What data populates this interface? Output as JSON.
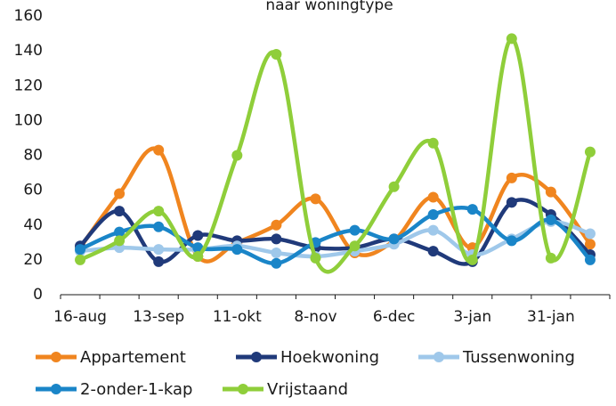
{
  "chart_data": {
    "type": "line",
    "title": "naar woningtype",
    "categories": [
      "16-aug",
      null,
      "13-sep",
      null,
      "11-okt",
      null,
      "8-nov",
      null,
      "6-dec",
      null,
      "3-jan",
      null,
      "31-jan",
      null
    ],
    "series": [
      {
        "name": "Appartement",
        "color": "#f0851f",
        "values": [
          27,
          58,
          83,
          22,
          30,
          40,
          55,
          24,
          31,
          56,
          27,
          67,
          59,
          29
        ]
      },
      {
        "name": "Hoekwoning",
        "color": "#203a7a",
        "values": [
          28,
          48,
          19,
          34,
          31,
          32,
          27,
          27,
          32,
          25,
          19,
          53,
          46,
          23
        ]
      },
      {
        "name": "Tussenwoning",
        "color": "#9fc8ea",
        "values": [
          25,
          27,
          26,
          26,
          28,
          24,
          22,
          25,
          29,
          37,
          23,
          32,
          42,
          35
        ]
      },
      {
        "name": "2-onder-1-kap",
        "color": "#1a85c8",
        "values": [
          26,
          36,
          39,
          27,
          26,
          18,
          30,
          37,
          32,
          46,
          49,
          31,
          43,
          20
        ]
      },
      {
        "name": "Vrijstaand",
        "color": "#8fce3a",
        "values": [
          20,
          31,
          48,
          22,
          80,
          138,
          21,
          28,
          62,
          87,
          20,
          147,
          21,
          82
        ]
      }
    ],
    "ylim": [
      0,
      160
    ],
    "yticks": [
      0,
      20,
      40,
      60,
      80,
      100,
      120,
      140,
      160
    ],
    "smooth": true,
    "legend": "bottom"
  }
}
